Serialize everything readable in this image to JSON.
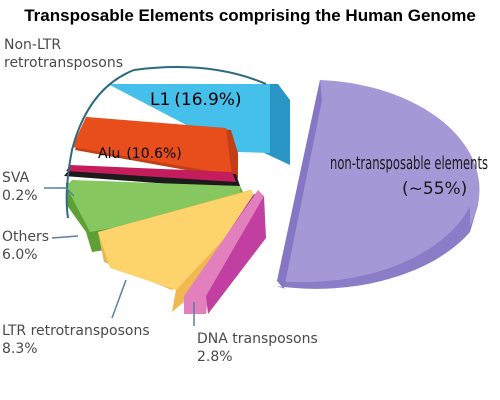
{
  "chart_data": {
    "type": "pie",
    "title": "Transposable Elements comprising the Human Genome",
    "slices": [
      {
        "label": "L1",
        "value_text": "(16.9%)",
        "value": 16.9,
        "color": "#3cbde4"
      },
      {
        "label": "Alu",
        "value_text": "(10.6%)",
        "value": 10.6,
        "color": "#e84e1b"
      },
      {
        "label": "SVA",
        "value_text": "0.2%",
        "value": 0.2,
        "color": "#1b1b1b"
      },
      {
        "label": "Others",
        "value_text": "6.0%",
        "value": 6.0,
        "color": "#86c85f"
      },
      {
        "label": "LTR retrotransposons",
        "value_text": "8.3%",
        "value": 8.3,
        "color": "#fdd36b"
      },
      {
        "label": "DNA transposons",
        "value_text": "2.8%",
        "value": 2.8,
        "color": "#e27fbd"
      },
      {
        "label": "non-transposable elements",
        "value_text": "(~55%)",
        "value": 55,
        "color": "#a697d7"
      }
    ],
    "group_label": {
      "line1": "Non-LTR",
      "line2": "retrotransposons"
    }
  }
}
